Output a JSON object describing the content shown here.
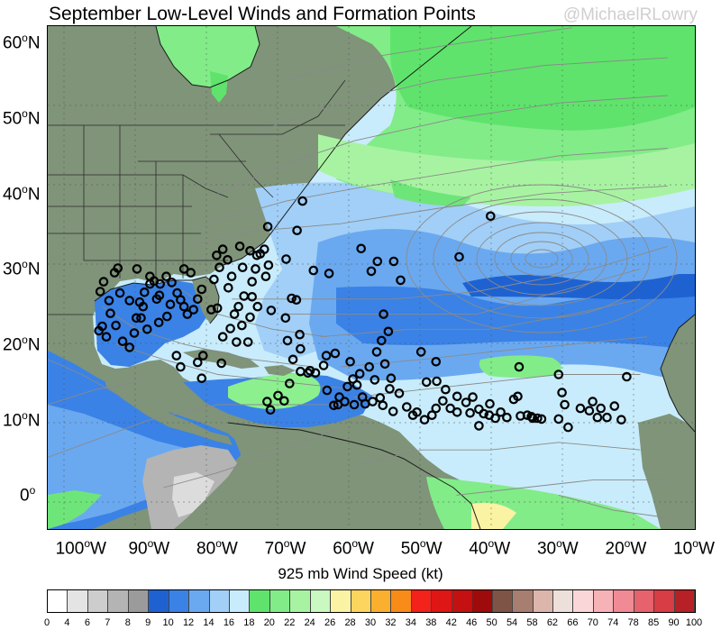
{
  "title": "September Low-Level Winds and Formation Points",
  "credit": "@MichaelRLowry",
  "colorbar_title": "925 mb Wind Speed (kt)",
  "lat_labels": [
    {
      "deg": 60,
      "text": "60",
      "hemi": "N"
    },
    {
      "deg": 50,
      "text": "50",
      "hemi": "N"
    },
    {
      "deg": 40,
      "text": "40",
      "hemi": "N"
    },
    {
      "deg": 30,
      "text": "30",
      "hemi": "N"
    },
    {
      "deg": 20,
      "text": "20",
      "hemi": "N"
    },
    {
      "deg": 10,
      "text": "10",
      "hemi": "N"
    },
    {
      "deg": 0,
      "text": "0",
      "hemi": ""
    }
  ],
  "lon_labels": [
    {
      "deg": -100,
      "text": "100",
      "hemi": "W"
    },
    {
      "deg": -90,
      "text": "90",
      "hemi": "W"
    },
    {
      "deg": -80,
      "text": "80",
      "hemi": "W"
    },
    {
      "deg": -70,
      "text": "70",
      "hemi": "W"
    },
    {
      "deg": -60,
      "text": "60",
      "hemi": "W"
    },
    {
      "deg": -50,
      "text": "50",
      "hemi": "W"
    },
    {
      "deg": -40,
      "text": "40",
      "hemi": "W"
    },
    {
      "deg": -30,
      "text": "30",
      "hemi": "W"
    },
    {
      "deg": -20,
      "text": "20",
      "hemi": "W"
    },
    {
      "deg": -10,
      "text": "10",
      "hemi": "W"
    }
  ],
  "colorbar_labels": [
    "0",
    "4",
    "6",
    "7",
    "8",
    "9",
    "10",
    "12",
    "14",
    "16",
    "18",
    "20",
    "22",
    "24",
    "26",
    "28",
    "30",
    "32",
    "34",
    "38",
    "42",
    "46",
    "50",
    "54",
    "58",
    "62",
    "66",
    "70",
    "74",
    "78",
    "85",
    "90",
    "100"
  ],
  "colorbar_colors": [
    "#ffffff",
    "#e4e4e4",
    "#cdcdcd",
    "#b4b4b4",
    "#9b9b9b",
    "#1e62d2",
    "#3a82e6",
    "#6aa9f0",
    "#a1cff7",
    "#c8ecfb",
    "#5fe36c",
    "#82ec88",
    "#a8f3a2",
    "#c9f8c1",
    "#f9f3a3",
    "#fcd55f",
    "#fbaf2f",
    "#f98b19",
    "#f3221a",
    "#df1616",
    "#c41010",
    "#9f0a0a",
    "#7e5446",
    "#a87e70",
    "#dcb6ab",
    "#ede0da",
    "#fbd6d8",
    "#f7b2b8",
    "#f08a94",
    "#e6626c",
    "#d83c45",
    "#b72025"
  ],
  "map_colors": {
    "land": "#7f9479",
    "ocean_light": "#c8ecfb",
    "ocean_mid": "#a1cff7",
    "wind_blue": "#6aa9f0",
    "wind_deep": "#3a82e6",
    "wind_strong": "#1e62d2",
    "green_light": "#a8f3a2",
    "green_mid": "#6ee579",
    "gray_calm": "#b4b4b4",
    "streamline": "#8a8a8a",
    "point": "#000000"
  },
  "formation_points": [
    [
      -94.7,
      30.1
    ],
    [
      -95.2,
      29.5
    ],
    [
      -96.8,
      28.3
    ],
    [
      -97.3,
      27.0
    ],
    [
      -96.0,
      25.8
    ],
    [
      -95.8,
      24.1
    ],
    [
      -97.0,
      22.4
    ],
    [
      -97.5,
      21.8
    ],
    [
      -96.4,
      21.0
    ],
    [
      -95.0,
      22.5
    ],
    [
      -94.0,
      20.4
    ],
    [
      -93.0,
      19.6
    ],
    [
      -92.3,
      21.5
    ],
    [
      -92.0,
      23.5
    ],
    [
      -91.5,
      25.6
    ],
    [
      -90.8,
      26.9
    ],
    [
      -90.0,
      28.0
    ],
    [
      -89.4,
      28.4
    ],
    [
      -88.5,
      28.0
    ],
    [
      -87.6,
      29.0
    ],
    [
      -86.8,
      28.2
    ],
    [
      -86.0,
      26.8
    ],
    [
      -85.5,
      25.9
    ],
    [
      -85.0,
      25.0
    ],
    [
      -84.5,
      24.0
    ],
    [
      -83.6,
      24.6
    ],
    [
      -83.0,
      26.0
    ],
    [
      -82.4,
      27.3
    ],
    [
      -84.0,
      29.5
    ],
    [
      -85.0,
      30.0
    ],
    [
      -89.0,
      26.0
    ],
    [
      -91.0,
      25.0
    ],
    [
      -93.0,
      25.8
    ],
    [
      -94.4,
      26.8
    ],
    [
      -91.9,
      30.0
    ],
    [
      -90.0,
      29.0
    ],
    [
      -88.6,
      26.5
    ],
    [
      -87.0,
      25.3
    ],
    [
      -80.6,
      28.6
    ],
    [
      -80.2,
      31.8
    ],
    [
      -79.3,
      32.6
    ],
    [
      -79.8,
      30.2
    ],
    [
      -78.6,
      31.2
    ],
    [
      -78.0,
      29.0
    ],
    [
      -78.5,
      27.5
    ],
    [
      -77.0,
      25.0
    ],
    [
      -76.2,
      26.4
    ],
    [
      -75.0,
      28.3
    ],
    [
      -76.4,
      30.2
    ],
    [
      -76.8,
      33.0
    ],
    [
      -75.3,
      32.4
    ],
    [
      -74.3,
      31.8
    ],
    [
      -73.8,
      32.0
    ],
    [
      -73.2,
      32.6
    ],
    [
      -74.5,
      30.0
    ],
    [
      -73.0,
      29.0
    ],
    [
      -75.0,
      26.3
    ],
    [
      -74.2,
      25.0
    ],
    [
      -72.6,
      30.5
    ],
    [
      -72.7,
      35.6
    ],
    [
      -68.4,
      35.1
    ],
    [
      -67.6,
      39.0
    ],
    [
      -70.0,
      31.3
    ],
    [
      -69.2,
      26.1
    ],
    [
      -68.5,
      25.9
    ],
    [
      -66.0,
      29.8
    ],
    [
      -63.7,
      29.4
    ],
    [
      -59.0,
      32.7
    ],
    [
      -56.6,
      31.0
    ],
    [
      -57.5,
      29.7
    ],
    [
      -54.2,
      31.0
    ],
    [
      -53.2,
      28.5
    ],
    [
      -55.7,
      24.0
    ],
    [
      -55.0,
      21.7
    ],
    [
      -56.0,
      20.5
    ],
    [
      -56.7,
      19.0
    ],
    [
      -57.8,
      17.0
    ],
    [
      -57.0,
      15.3
    ],
    [
      -55.5,
      17.4
    ],
    [
      -54.6,
      15.5
    ],
    [
      -53.4,
      13.5
    ],
    [
      -54.8,
      14.1
    ],
    [
      -56.2,
      12.9
    ],
    [
      -58.4,
      12.1
    ],
    [
      -60.0,
      12.0
    ],
    [
      -61.4,
      12.4
    ],
    [
      -63.0,
      11.9
    ],
    [
      -62.2,
      13.0
    ],
    [
      -59.6,
      14.6
    ],
    [
      -59.2,
      16.1
    ],
    [
      -60.6,
      17.7
    ],
    [
      -62.8,
      18.8
    ],
    [
      -64.1,
      18.5
    ],
    [
      -64.5,
      17.2
    ],
    [
      -65.7,
      16.2
    ],
    [
      -66.5,
      16.5
    ],
    [
      -67.9,
      16.4
    ],
    [
      -69.0,
      18.0
    ],
    [
      -67.9,
      19.4
    ],
    [
      -69.8,
      20.5
    ],
    [
      -68.0,
      21.3
    ],
    [
      -69.5,
      14.8
    ],
    [
      -71.2,
      13.2
    ],
    [
      -72.3,
      11.3
    ],
    [
      -72.8,
      12.4
    ],
    [
      -70.3,
      12.5
    ],
    [
      -79.3,
      21.0
    ],
    [
      -78.2,
      22.1
    ],
    [
      -77.3,
      20.3
    ],
    [
      -75.6,
      20.3
    ],
    [
      -76.5,
      22.5
    ],
    [
      -75.3,
      23.6
    ],
    [
      -77.6,
      24.0
    ],
    [
      -79.5,
      17.5
    ],
    [
      -82.2,
      18.5
    ],
    [
      -83.0,
      17.6
    ],
    [
      -82.4,
      15.5
    ],
    [
      -85.5,
      17.0
    ],
    [
      -86.1,
      18.5
    ],
    [
      -87.5,
      23.7
    ],
    [
      -88.7,
      22.9
    ],
    [
      -90.4,
      22.0
    ],
    [
      -91.3,
      23.5
    ],
    [
      -81.0,
      24.6
    ],
    [
      -80.1,
      24.8
    ],
    [
      -70.1,
      23.5
    ],
    [
      -72.2,
      24.5
    ],
    [
      -66.8,
      16.2
    ],
    [
      -64.0,
      13.9
    ],
    [
      -62.4,
      12.0
    ],
    [
      -61.0,
      14.4
    ],
    [
      -60.2,
      15.4
    ],
    [
      -58.8,
      13.0
    ],
    [
      -57.3,
      12.4
    ],
    [
      -55.8,
      11.9
    ],
    [
      -54.3,
      11.1
    ],
    [
      -52.3,
      11.7
    ],
    [
      -51.4,
      10.6
    ],
    [
      -50.8,
      11.0
    ],
    [
      -49.7,
      10.0
    ],
    [
      -48.6,
      10.6
    ],
    [
      -48.0,
      11.5
    ],
    [
      -47.0,
      12.5
    ],
    [
      -45.9,
      11.5
    ],
    [
      -44.9,
      11.0
    ],
    [
      -43.6,
      12.3
    ],
    [
      -42.6,
      13.0
    ],
    [
      -41.7,
      11.4
    ],
    [
      -41.0,
      10.8
    ],
    [
      -40.2,
      10.6
    ],
    [
      -39.3,
      10.2
    ],
    [
      -38.5,
      11.0
    ],
    [
      -37.6,
      10.3
    ],
    [
      -36.6,
      12.7
    ],
    [
      -35.6,
      10.5
    ],
    [
      -34.6,
      10.6
    ],
    [
      -33.8,
      10.2
    ],
    [
      -32.5,
      10.1
    ],
    [
      -36.0,
      13.1
    ],
    [
      -40.1,
      12.1
    ],
    [
      -41.7,
      9.2
    ],
    [
      -43.0,
      10.9
    ],
    [
      -44.9,
      13.1
    ],
    [
      -46.6,
      14.0
    ],
    [
      -47.9,
      15.1
    ],
    [
      -48.0,
      17.7
    ],
    [
      -50.2,
      19.0
    ],
    [
      -49.4,
      15.0
    ],
    [
      -44.6,
      31.6
    ],
    [
      -40.0,
      37.0
    ],
    [
      -35.8,
      17.0
    ],
    [
      -30.0,
      16.0
    ],
    [
      -29.5,
      13.6
    ],
    [
      -29.1,
      12.0
    ],
    [
      -28.6,
      9.0
    ],
    [
      -25.5,
      11.2
    ],
    [
      -25.0,
      12.4
    ],
    [
      -24.3,
      10.3
    ],
    [
      -23.8,
      11.5
    ],
    [
      -22.9,
      10.3
    ],
    [
      -21.8,
      11.8
    ],
    [
      -20.8,
      10.0
    ],
    [
      -20.0,
      15.7
    ],
    [
      -33.1,
      10.2
    ],
    [
      -34.0,
      10.4
    ],
    [
      -26.8,
      11.5
    ],
    [
      -30.0,
      10.1
    ]
  ]
}
